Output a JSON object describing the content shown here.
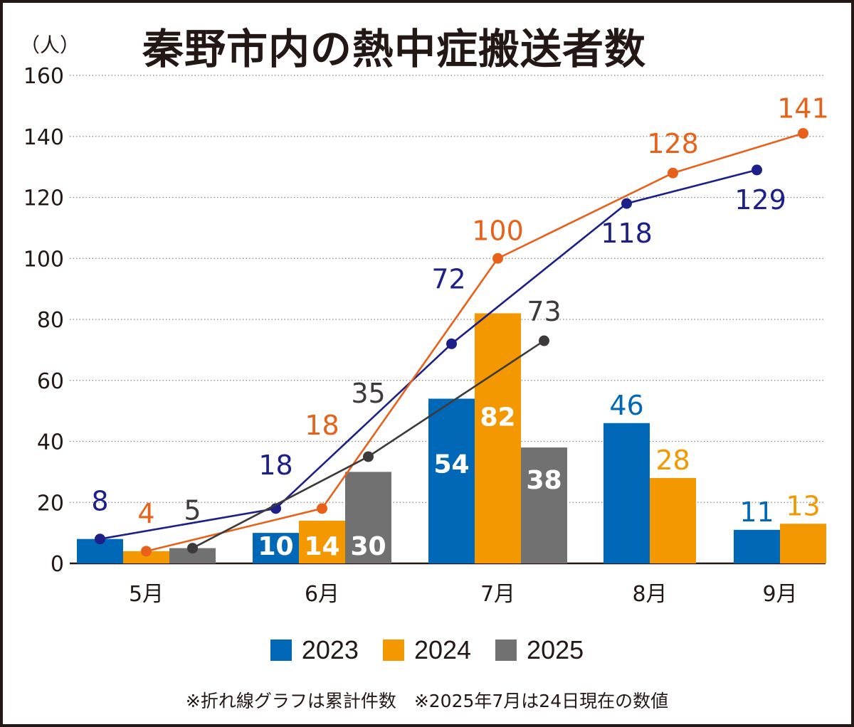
{
  "chart_data": {
    "type": "bar",
    "title": "秦野市内の熱中症搬送者数",
    "ylabel": "（人）",
    "xlabel": "",
    "ylim": [
      0,
      160
    ],
    "yticks": [
      0,
      20,
      40,
      60,
      80,
      100,
      120,
      140,
      160
    ],
    "grid": true,
    "legend_position": "bottom",
    "categories": [
      "5月",
      "6月",
      "7月",
      "8月",
      "9月"
    ],
    "series": [
      {
        "name": "2023",
        "type": "bar",
        "color": "#0068b7",
        "values": [
          8,
          10,
          54,
          46,
          11
        ]
      },
      {
        "name": "2024",
        "type": "bar",
        "color": "#f39800",
        "values": [
          4,
          14,
          82,
          28,
          13
        ]
      },
      {
        "name": "2025",
        "type": "bar",
        "color": "#727171",
        "values": [
          5,
          30,
          38,
          null,
          null
        ]
      }
    ],
    "cumulative_lines": [
      {
        "name": "2023 累計",
        "color": "#1d2088",
        "values": [
          8,
          18,
          72,
          118,
          129
        ]
      },
      {
        "name": "2024 累計",
        "color": "#e8611a",
        "values": [
          4,
          18,
          100,
          128,
          141
        ]
      },
      {
        "name": "2025 累計",
        "color": "#3e3a39",
        "values": [
          5,
          35,
          73,
          null,
          null
        ]
      }
    ],
    "notes": "※折れ線グラフは累計件数　※2025年7月は24日現在の数値"
  }
}
